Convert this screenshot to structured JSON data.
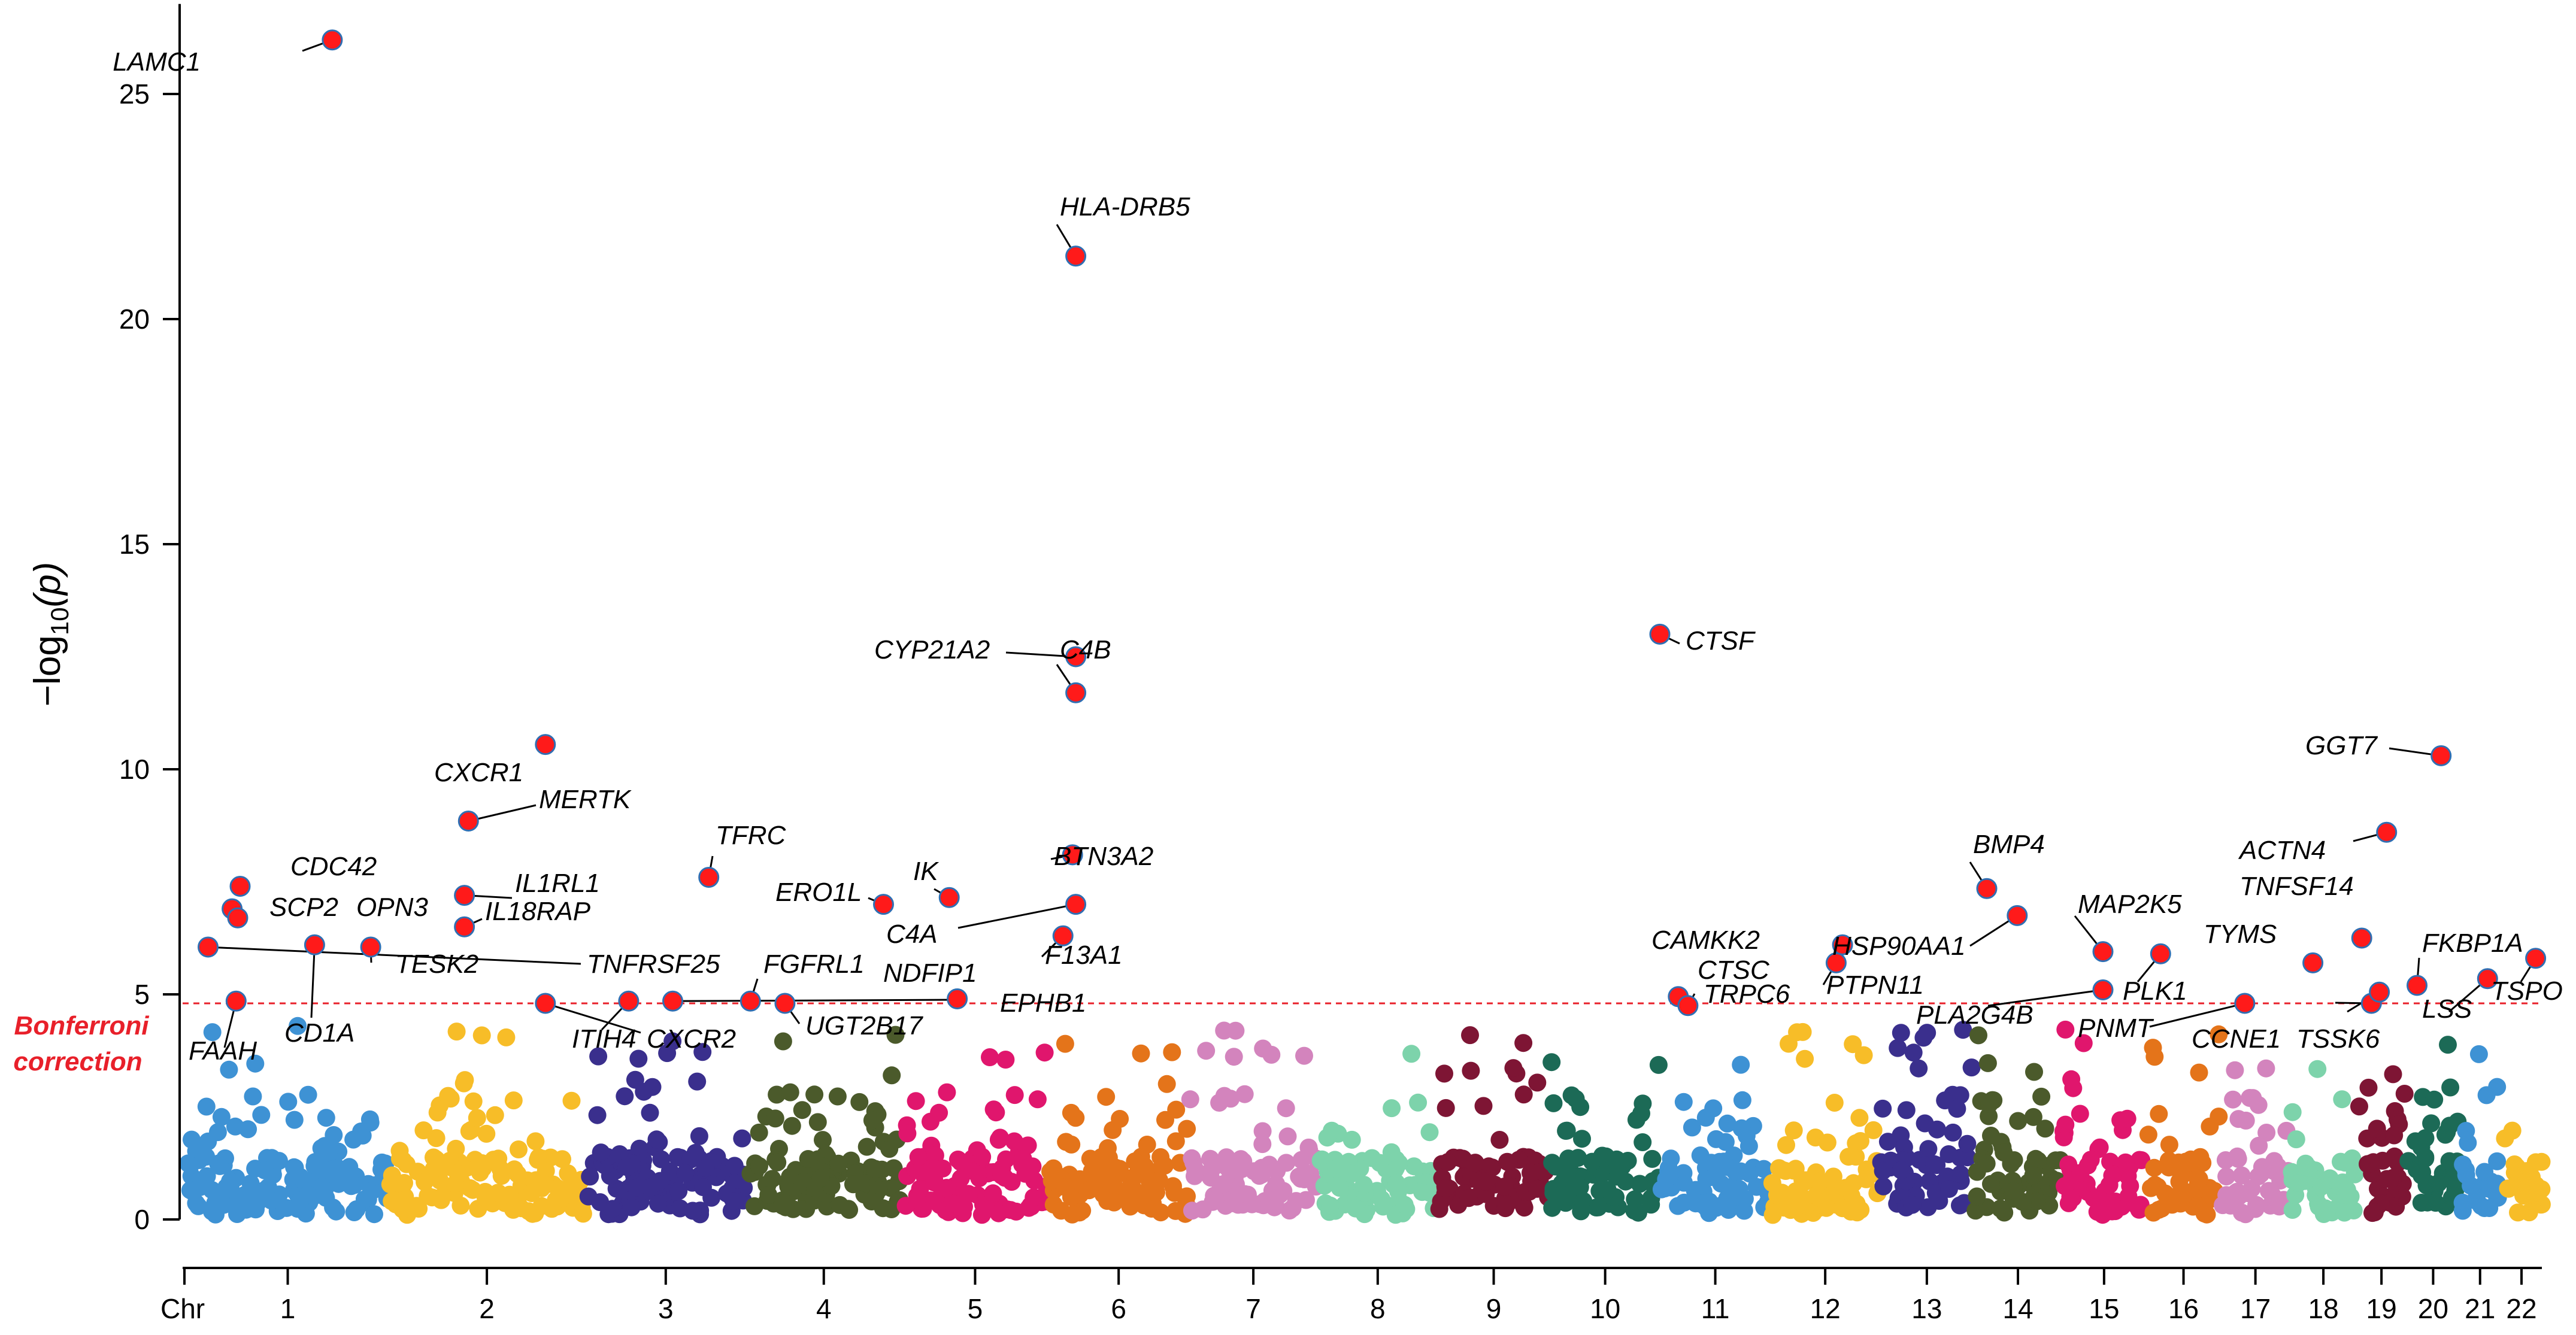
{
  "chart_data": {
    "type": "scatter",
    "subtype": "manhattan",
    "ylabel": "−log10(p)",
    "ylabel_main": "−log",
    "ylabel_sub": "10",
    "ylabel_tail": "(p)",
    "xlabel": "Chr",
    "ylim": [
      0,
      27
    ],
    "yticks": [
      "0",
      "5",
      "10",
      "15",
      "20",
      "25"
    ],
    "threshold": {
      "value": 4.8,
      "label_line1": "Bonferroni",
      "label_line2": "correction",
      "color": "#e8202a"
    },
    "chromosomes": [
      {
        "label": "1",
        "color": "#3e92d4",
        "start": 0.0,
        "end": 248.9
      },
      {
        "label": "2",
        "color": "#f7bd28",
        "start": 251.9,
        "end": 494.1
      },
      {
        "label": "3",
        "color": "#3a2f8d",
        "start": 497.1,
        "end": 695.4
      },
      {
        "label": "4",
        "color": "#4b5a2b",
        "start": 698.4,
        "end": 888.6
      },
      {
        "label": "5",
        "color": "#e0166d",
        "start": 891.6,
        "end": 1073.1
      },
      {
        "label": "6",
        "color": "#e4741a",
        "start": 1076.1,
        "end": 1246.9
      },
      {
        "label": "7",
        "color": "#d384bd",
        "start": 1249.9,
        "end": 1409.3
      },
      {
        "label": "8",
        "color": "#7dd3ab",
        "start": 1412.3,
        "end": 1557.4
      },
      {
        "label": "9",
        "color": "#7e1534",
        "start": 1560.4,
        "end": 1698.8
      },
      {
        "label": "10",
        "color": "#1c6a56",
        "start": 1701.8,
        "end": 1835.6
      },
      {
        "label": "11",
        "color": "#3e92d4",
        "start": 1838.6,
        "end": 1973.7
      },
      {
        "label": "12",
        "color": "#f7bd28",
        "start": 1976.7,
        "end": 2110.0
      },
      {
        "label": "13",
        "color": "#3a2f8d",
        "start": 2113.0,
        "end": 2227.4
      },
      {
        "label": "14",
        "color": "#4b5a2b",
        "start": 2230.4,
        "end": 2337.4
      },
      {
        "label": "15",
        "color": "#e0166d",
        "start": 2340.4,
        "end": 2442.4
      },
      {
        "label": "16",
        "color": "#e4741a",
        "start": 2445.4,
        "end": 2535.7
      },
      {
        "label": "17",
        "color": "#d384bd",
        "start": 2538.7,
        "end": 2621.9
      },
      {
        "label": "18",
        "color": "#7dd3ab",
        "start": 2624.9,
        "end": 2705.3
      },
      {
        "label": "19",
        "color": "#7e1534",
        "start": 2708.3,
        "end": 2766.9
      },
      {
        "label": "20",
        "color": "#1c6a56",
        "start": 2769.9,
        "end": 2834.3
      },
      {
        "label": "21",
        "color": "#3e92d4",
        "start": 2837.3,
        "end": 2884.0
      },
      {
        "label": "22",
        "color": "#f7bd28",
        "start": 2887.0,
        "end": 2937.8
      }
    ],
    "significant_points": [
      {
        "gene": "LAMC1",
        "x": 180,
        "y": 26.2
      },
      {
        "gene": "CDC42",
        "x": 65,
        "y": 7.4
      },
      {
        "gene": "SCP2",
        "x": 55,
        "y": 6.9
      },
      {
        "gene": "OPN3",
        "x": 62,
        "y": 6.7
      },
      {
        "gene": "TESK2",
        "x": 228,
        "y": 6.05
      },
      {
        "gene": "TNFRSF25",
        "x": 25,
        "y": 6.05
      },
      {
        "gene": "CD1A",
        "x": 158,
        "y": 6.1
      },
      {
        "gene": "FAAH",
        "x": 60,
        "y": 4.85
      },
      {
        "gene": "CXCR1",
        "x": 446,
        "y": 10.55
      },
      {
        "gene": "MERTK",
        "x": 350,
        "y": 8.85
      },
      {
        "gene": "IL1RL1",
        "x": 345,
        "y": 7.2
      },
      {
        "gene": "IL18RAP",
        "x": 345,
        "y": 6.5
      },
      {
        "gene": "CXCR2",
        "x": 446,
        "y": 4.8
      },
      {
        "gene": "ITIH4",
        "x": 550,
        "y": 4.85
      },
      {
        "gene": "TFRC",
        "x": 650,
        "y": 7.6
      },
      {
        "gene": "FGFRL1",
        "x": 702,
        "y": 4.85
      },
      {
        "gene": "UGT2B17",
        "x": 745,
        "y": 4.8
      },
      {
        "gene": "ERO1L",
        "x": 868,
        "y": 7.0
      },
      {
        "gene": "IK",
        "x": 950,
        "y": 7.15
      },
      {
        "gene": "NDFIP1",
        "x": 960,
        "y": 4.9
      },
      {
        "gene": "EPHB1",
        "x": 605,
        "y": 4.85
      },
      {
        "gene": "HLA-DRB5",
        "x": 1108,
        "y": 21.4
      },
      {
        "gene": "CYP21A2",
        "x": 1108,
        "y": 12.5
      },
      {
        "gene": "C4B",
        "x": 1108,
        "y": 11.7
      },
      {
        "gene": "BTN3A2",
        "x": 1104,
        "y": 8.1
      },
      {
        "gene": "C4A",
        "x": 1108,
        "y": 7.0
      },
      {
        "gene": "F13A1",
        "x": 1092,
        "y": 6.3
      },
      {
        "gene": "CTSF",
        "x": 1837,
        "y": 13.0
      },
      {
        "gene": "CTSC",
        "x": 1860,
        "y": 4.95
      },
      {
        "gene": "TRPC6",
        "x": 1872,
        "y": 4.75
      },
      {
        "gene": "CAMKK2",
        "x": 2065,
        "y": 6.1
      },
      {
        "gene": "PTPN11",
        "x": 2057,
        "y": 5.7
      },
      {
        "gene": "BMP4",
        "x": 2245,
        "y": 7.35
      },
      {
        "gene": "HSP90AA1",
        "x": 2283,
        "y": 6.75
      },
      {
        "gene": "PLA2G4B",
        "x": 2390,
        "y": 5.1
      },
      {
        "gene": "MAP2K5",
        "x": 2390,
        "y": 5.95
      },
      {
        "gene": "PLK1",
        "x": 2462,
        "y": 5.9
      },
      {
        "gene": "PNMT",
        "x": 2567,
        "y": 4.8
      },
      {
        "gene": "TYMS",
        "x": 2652,
        "y": 5.7
      },
      {
        "gene": "CCNE1",
        "x": 2725,
        "y": 4.8
      },
      {
        "gene": "TSSK6",
        "x": 2735,
        "y": 5.05
      },
      {
        "gene": "TNFSF14",
        "x": 2713,
        "y": 6.25
      },
      {
        "gene": "ACTN4",
        "x": 2744,
        "y": 8.6
      },
      {
        "gene": "GGT7",
        "x": 2812,
        "y": 10.3
      },
      {
        "gene": "FKBP1A",
        "x": 2782,
        "y": 5.2
      },
      {
        "gene": "LSS",
        "x": 2870,
        "y": 5.35
      },
      {
        "gene": "TSPO",
        "x": 2930,
        "y": 5.8
      }
    ]
  }
}
